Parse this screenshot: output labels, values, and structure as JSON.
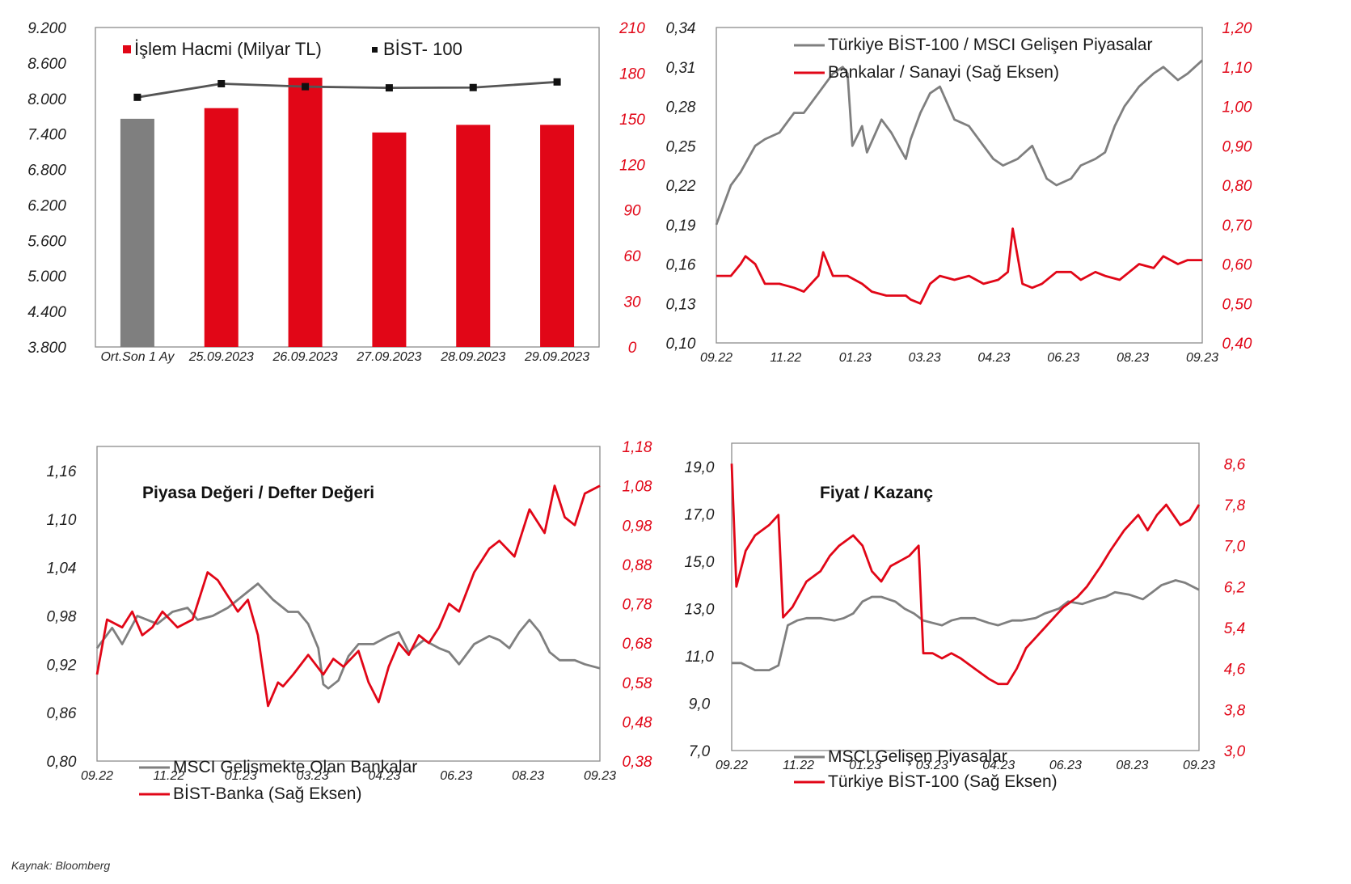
{
  "source_note": "Kaynak: Bloomberg",
  "colors": {
    "red": "#e10617",
    "gray": "#7f7f7f",
    "dark": "#555555",
    "axis_text": "#1f1f1f"
  },
  "chart_data": [
    {
      "id": "c1",
      "type": "bar",
      "title": "",
      "categories": [
        "Ort.Son 1 Ay",
        "25.09.2023",
        "26.09.2023",
        "27.09.2023",
        "28.09.2023",
        "29.09.2023"
      ],
      "series": [
        {
          "name": "İşlem Hacmi (Milyar TL)",
          "type": "bar",
          "axis": "right",
          "values": [
            150,
            157,
            177,
            141,
            146,
            146
          ],
          "colors": [
            "#7f7f7f",
            "#e10617",
            "#e10617",
            "#e10617",
            "#e10617",
            "#e10617"
          ]
        },
        {
          "name": "BİST- 100",
          "type": "line",
          "axis": "left",
          "values": [
            8020,
            8250,
            8200,
            8180,
            8185,
            8280
          ]
        }
      ],
      "y_left": {
        "min": 3800,
        "max": 9200,
        "ticks": [
          "3.800",
          "4.400",
          "5.000",
          "5.600",
          "6.200",
          "6.800",
          "7.400",
          "8.000",
          "8.600",
          "9.200"
        ]
      },
      "y_right": {
        "min": 0,
        "max": 210,
        "ticks": [
          "0",
          "30",
          "60",
          "90",
          "120",
          "150",
          "180",
          "210"
        ]
      },
      "legend": "top"
    },
    {
      "id": "c2",
      "type": "line",
      "title": "",
      "x_ticks": [
        "09.22",
        "11.22",
        "01.23",
        "03.23",
        "04.23",
        "06.23",
        "08.23",
        "09.23"
      ],
      "series": [
        {
          "name": "Türkiye BİST-100 / MSCI Gelişen Piyasalar",
          "axis": "left",
          "color": "#7f7f7f",
          "x": [
            0,
            0.03,
            0.05,
            0.08,
            0.1,
            0.13,
            0.16,
            0.18,
            0.21,
            0.24,
            0.26,
            0.27,
            0.28,
            0.3,
            0.31,
            0.34,
            0.36,
            0.39,
            0.4,
            0.42,
            0.44,
            0.46,
            0.49,
            0.52,
            0.55,
            0.57,
            0.59,
            0.62,
            0.65,
            0.68,
            0.7,
            0.73,
            0.75,
            0.78,
            0.8,
            0.82,
            0.84,
            0.87,
            0.9,
            0.92,
            0.95,
            0.97,
            1.0
          ],
          "values": [
            0.19,
            0.22,
            0.23,
            0.25,
            0.255,
            0.26,
            0.275,
            0.275,
            0.29,
            0.305,
            0.31,
            0.305,
            0.25,
            0.265,
            0.245,
            0.27,
            0.26,
            0.24,
            0.255,
            0.275,
            0.29,
            0.295,
            0.27,
            0.265,
            0.25,
            0.24,
            0.235,
            0.24,
            0.25,
            0.225,
            0.22,
            0.225,
            0.235,
            0.24,
            0.245,
            0.265,
            0.28,
            0.295,
            0.305,
            0.31,
            0.3,
            0.305,
            0.315
          ]
        },
        {
          "name": "Bankalar / Sanayi (Sağ Eksen)",
          "axis": "right",
          "color": "#e10617",
          "x": [
            0,
            0.03,
            0.05,
            0.06,
            0.08,
            0.1,
            0.13,
            0.16,
            0.18,
            0.21,
            0.22,
            0.24,
            0.27,
            0.3,
            0.32,
            0.35,
            0.37,
            0.39,
            0.4,
            0.42,
            0.44,
            0.46,
            0.49,
            0.52,
            0.55,
            0.58,
            0.6,
            0.61,
            0.63,
            0.65,
            0.67,
            0.7,
            0.73,
            0.75,
            0.78,
            0.8,
            0.83,
            0.85,
            0.87,
            0.9,
            0.92,
            0.95,
            0.97,
            1.0
          ],
          "values": [
            0.57,
            0.57,
            0.6,
            0.62,
            0.6,
            0.55,
            0.55,
            0.54,
            0.53,
            0.57,
            0.63,
            0.57,
            0.57,
            0.55,
            0.53,
            0.52,
            0.52,
            0.52,
            0.51,
            0.5,
            0.55,
            0.57,
            0.56,
            0.57,
            0.55,
            0.56,
            0.58,
            0.69,
            0.55,
            0.54,
            0.55,
            0.58,
            0.58,
            0.56,
            0.58,
            0.57,
            0.56,
            0.58,
            0.6,
            0.59,
            0.62,
            0.6,
            0.61,
            0.61
          ]
        }
      ],
      "y_left": {
        "min": 0.1,
        "max": 0.34,
        "ticks": [
          "0,10",
          "0,13",
          "0,16",
          "0,19",
          "0,22",
          "0,25",
          "0,28",
          "0,31",
          "0,34"
        ]
      },
      "y_right": {
        "min": 0.4,
        "max": 1.2,
        "ticks": [
          "0,40",
          "0,50",
          "0,60",
          "0,70",
          "0,80",
          "0,90",
          "1,00",
          "1,10",
          "1,20"
        ]
      },
      "legend": "top-left"
    },
    {
      "id": "c3",
      "type": "line",
      "title": "Piyasa Değeri / Defter Değeri",
      "x_ticks": [
        "09.22",
        "11.22",
        "01.23",
        "03.23",
        "04.23",
        "06.23",
        "08.23",
        "09.23"
      ],
      "series": [
        {
          "name": "MSCI Gelismekte Olan Bankalar",
          "axis": "left",
          "color": "#7f7f7f",
          "x": [
            0,
            0.03,
            0.05,
            0.08,
            0.1,
            0.12,
            0.15,
            0.18,
            0.2,
            0.23,
            0.26,
            0.28,
            0.3,
            0.32,
            0.35,
            0.38,
            0.4,
            0.42,
            0.44,
            0.45,
            0.46,
            0.48,
            0.5,
            0.52,
            0.55,
            0.58,
            0.6,
            0.62,
            0.65,
            0.68,
            0.7,
            0.72,
            0.75,
            0.78,
            0.8,
            0.82,
            0.84,
            0.86,
            0.88,
            0.9,
            0.92,
            0.95,
            0.97,
            1.0
          ],
          "values": [
            0.94,
            0.965,
            0.945,
            0.98,
            0.975,
            0.97,
            0.985,
            0.99,
            0.975,
            0.98,
            0.99,
            1.0,
            1.01,
            1.02,
            1.0,
            0.985,
            0.985,
            0.97,
            0.94,
            0.895,
            0.89,
            0.9,
            0.93,
            0.945,
            0.945,
            0.955,
            0.96,
            0.935,
            0.95,
            0.94,
            0.935,
            0.92,
            0.945,
            0.955,
            0.95,
            0.94,
            0.96,
            0.975,
            0.96,
            0.935,
            0.925,
            0.925,
            0.92,
            0.915
          ]
        },
        {
          "name": "BİST-Banka (Sağ Eksen)",
          "axis": "right",
          "color": "#e10617",
          "x": [
            0,
            0.02,
            0.05,
            0.07,
            0.09,
            0.11,
            0.13,
            0.16,
            0.19,
            0.22,
            0.24,
            0.26,
            0.28,
            0.3,
            0.32,
            0.34,
            0.36,
            0.37,
            0.39,
            0.42,
            0.45,
            0.47,
            0.49,
            0.52,
            0.54,
            0.56,
            0.58,
            0.6,
            0.62,
            0.64,
            0.66,
            0.68,
            0.7,
            0.72,
            0.75,
            0.78,
            0.8,
            0.83,
            0.86,
            0.89,
            0.91,
            0.93,
            0.95,
            0.97,
            1.0
          ],
          "values": [
            0.6,
            0.74,
            0.72,
            0.76,
            0.7,
            0.72,
            0.76,
            0.72,
            0.74,
            0.86,
            0.84,
            0.8,
            0.76,
            0.79,
            0.7,
            0.52,
            0.58,
            0.57,
            0.6,
            0.65,
            0.6,
            0.64,
            0.62,
            0.66,
            0.58,
            0.53,
            0.62,
            0.68,
            0.65,
            0.7,
            0.68,
            0.72,
            0.78,
            0.76,
            0.86,
            0.92,
            0.94,
            0.9,
            1.02,
            0.96,
            1.08,
            1.0,
            0.98,
            1.06,
            1.08
          ]
        }
      ],
      "y_left": {
        "min": 0.8,
        "max": 1.19,
        "ticks": [
          "0,80",
          "0,86",
          "0,92",
          "0,98",
          "1,04",
          "1,10",
          "1,16"
        ]
      },
      "y_right": {
        "min": 0.38,
        "max": 1.18,
        "ticks": [
          "0,38",
          "0,48",
          "0,58",
          "0,68",
          "0,78",
          "0,88",
          "0,98",
          "1,08",
          "1,18"
        ]
      },
      "legend": "bottom-left"
    },
    {
      "id": "c4",
      "type": "line",
      "title": "Fiyat / Kazanç",
      "x_ticks": [
        "09.22",
        "11.22",
        "01.23",
        "03.23",
        "04.23",
        "06.23",
        "08.23",
        "09.23"
      ],
      "series": [
        {
          "name": "MSCI Gelişen Piyasalar",
          "axis": "left",
          "color": "#7f7f7f",
          "x": [
            0,
            0.02,
            0.05,
            0.08,
            0.1,
            0.12,
            0.14,
            0.16,
            0.19,
            0.22,
            0.24,
            0.26,
            0.28,
            0.3,
            0.32,
            0.35,
            0.37,
            0.39,
            0.41,
            0.43,
            0.45,
            0.47,
            0.49,
            0.52,
            0.55,
            0.57,
            0.6,
            0.62,
            0.65,
            0.67,
            0.7,
            0.72,
            0.75,
            0.78,
            0.8,
            0.82,
            0.85,
            0.88,
            0.9,
            0.92,
            0.95,
            0.97,
            1.0
          ],
          "values": [
            10.7,
            10.7,
            10.4,
            10.4,
            10.6,
            12.3,
            12.5,
            12.6,
            12.6,
            12.5,
            12.6,
            12.8,
            13.3,
            13.5,
            13.5,
            13.3,
            13.0,
            12.8,
            12.5,
            12.4,
            12.3,
            12.5,
            12.6,
            12.6,
            12.4,
            12.3,
            12.5,
            12.5,
            12.6,
            12.8,
            13.0,
            13.3,
            13.2,
            13.4,
            13.5,
            13.7,
            13.6,
            13.4,
            13.7,
            14.0,
            14.2,
            14.1,
            13.8
          ]
        },
        {
          "name": "Türkiye BİST-100 (Sağ Eksen)",
          "axis": "right",
          "color": "#e10617",
          "x": [
            0,
            0.01,
            0.03,
            0.05,
            0.08,
            0.1,
            0.11,
            0.13,
            0.16,
            0.19,
            0.21,
            0.23,
            0.26,
            0.28,
            0.3,
            0.32,
            0.34,
            0.36,
            0.38,
            0.4,
            0.41,
            0.43,
            0.45,
            0.47,
            0.49,
            0.52,
            0.55,
            0.57,
            0.59,
            0.61,
            0.63,
            0.65,
            0.67,
            0.69,
            0.71,
            0.74,
            0.76,
            0.79,
            0.81,
            0.84,
            0.87,
            0.89,
            0.91,
            0.93,
            0.96,
            0.98,
            1.0
          ],
          "values": [
            8.6,
            6.2,
            6.9,
            7.2,
            7.4,
            7.6,
            5.6,
            5.8,
            6.3,
            6.5,
            6.8,
            7.0,
            7.2,
            7.0,
            6.5,
            6.3,
            6.6,
            6.7,
            6.8,
            7.0,
            4.9,
            4.9,
            4.8,
            4.9,
            4.8,
            4.6,
            4.4,
            4.3,
            4.3,
            4.6,
            5.0,
            5.2,
            5.4,
            5.6,
            5.8,
            6.0,
            6.2,
            6.6,
            6.9,
            7.3,
            7.6,
            7.3,
            7.6,
            7.8,
            7.4,
            7.5,
            7.8
          ]
        }
      ],
      "y_left": {
        "min": 7.0,
        "max": 20.0,
        "ticks": [
          "7,0",
          "9,0",
          "11,0",
          "13,0",
          "15,0",
          "17,0",
          "19,0"
        ]
      },
      "y_right": {
        "min": 3.0,
        "max": 9.0,
        "ticks": [
          "3,0",
          "3,8",
          "4,6",
          "5,4",
          "6,2",
          "7,0",
          "7,8",
          "8,6"
        ]
      },
      "legend": "bottom-left"
    }
  ]
}
